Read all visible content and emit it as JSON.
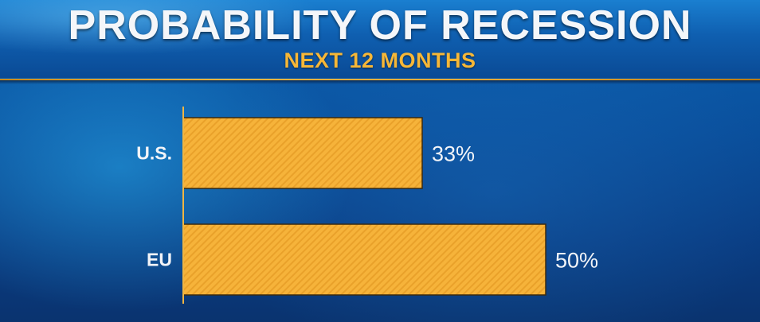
{
  "header": {
    "title": "PROBABILITY OF RECESSION",
    "subtitle": "NEXT 12 MONTHS"
  },
  "colors": {
    "bar_fill": "#f6b33a",
    "bar_stripe": "#e79d22",
    "bar_outline": "#3a2a10",
    "axis": "#f0b542",
    "text": "#f2f4f8",
    "subtitle": "#f6b737"
  },
  "chart_data": {
    "type": "bar",
    "orientation": "horizontal",
    "title": "PROBABILITY OF RECESSION",
    "subtitle": "NEXT 12 MONTHS",
    "categories": [
      "U.S.",
      "EU"
    ],
    "values": [
      33,
      50
    ],
    "value_labels": [
      "33%",
      "50%"
    ],
    "xlim": [
      0,
      75
    ],
    "grid": false,
    "legend": "none"
  }
}
